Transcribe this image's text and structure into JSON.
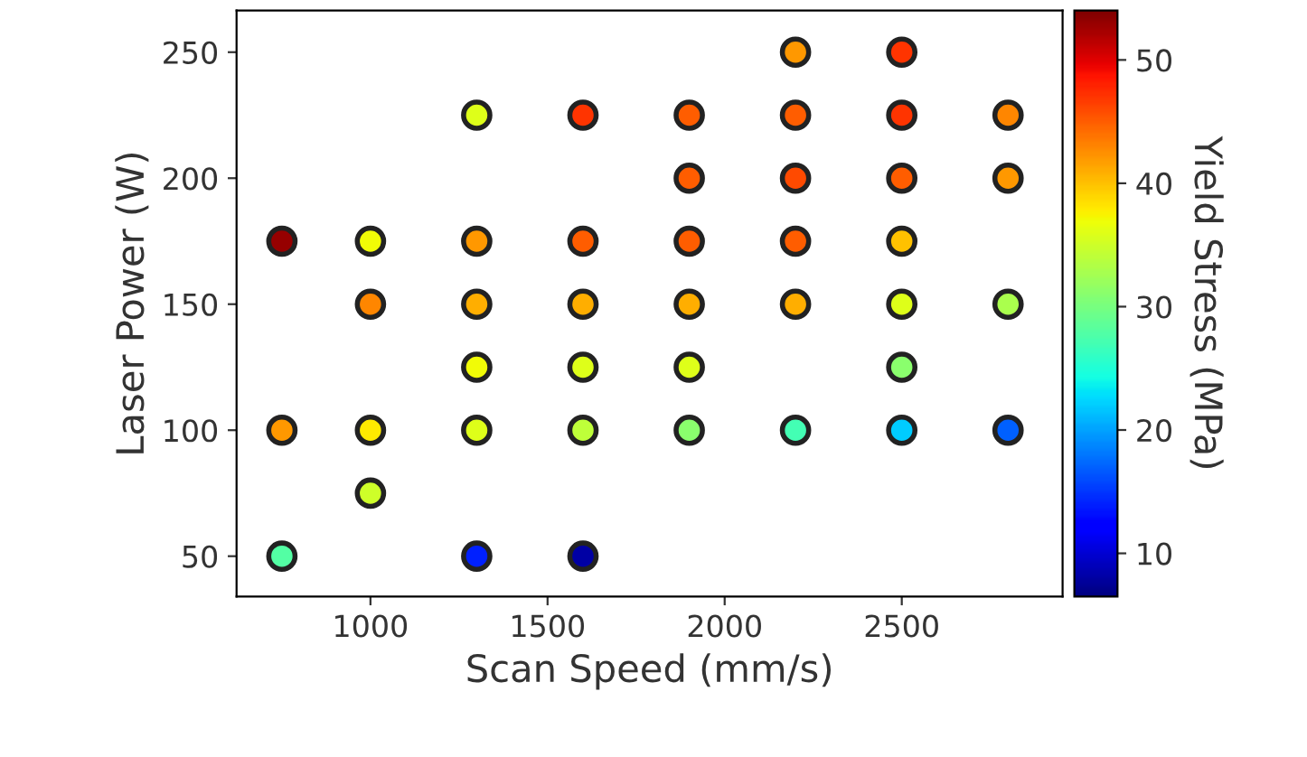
{
  "chart_data": {
    "type": "scatter",
    "xlabel": "Scan Speed (mm/s)",
    "ylabel": "Laser Power (W)",
    "clabel": "Yield Stress (MPa)",
    "x": [
      750,
      750,
      750,
      1000,
      1000,
      1000,
      1000,
      1300,
      1300,
      1300,
      1300,
      1300,
      1300,
      1600,
      1600,
      1600,
      1600,
      1600,
      1600,
      1900,
      1900,
      1900,
      1900,
      1900,
      1900,
      2200,
      2200,
      2200,
      2200,
      2200,
      2200,
      2500,
      2500,
      2500,
      2500,
      2500,
      2500,
      2500,
      2800,
      2800,
      2800,
      2800
    ],
    "values": [
      175,
      100,
      50,
      175,
      150,
      100,
      75,
      225,
      175,
      150,
      125,
      100,
      50,
      225,
      175,
      150,
      125,
      100,
      50,
      225,
      200,
      175,
      150,
      125,
      100,
      250,
      225,
      200,
      175,
      150,
      100,
      250,
      225,
      200,
      175,
      150,
      125,
      100,
      225,
      200,
      150,
      100
    ],
    "cvalues": [
      53,
      42,
      28,
      37,
      43,
      38,
      35,
      36,
      42,
      41,
      37,
      36,
      14,
      47,
      45,
      41,
      36,
      34,
      8,
      45,
      45,
      45,
      41,
      36,
      31,
      42,
      45,
      46,
      45,
      41,
      27,
      47,
      47,
      45,
      40,
      36,
      31,
      22,
      43,
      42,
      33,
      17
    ],
    "marker": "circle",
    "xlim": [
      622,
      2954
    ],
    "ylim": [
      34,
      266.5
    ],
    "xticks": [
      1000,
      1500,
      2000,
      2500
    ],
    "yticks": [
      50,
      100,
      150,
      200,
      250
    ],
    "clim": [
      6.5,
      54
    ],
    "cticks": [
      10,
      20,
      30,
      40,
      50
    ],
    "grid": false,
    "legend": false
  }
}
